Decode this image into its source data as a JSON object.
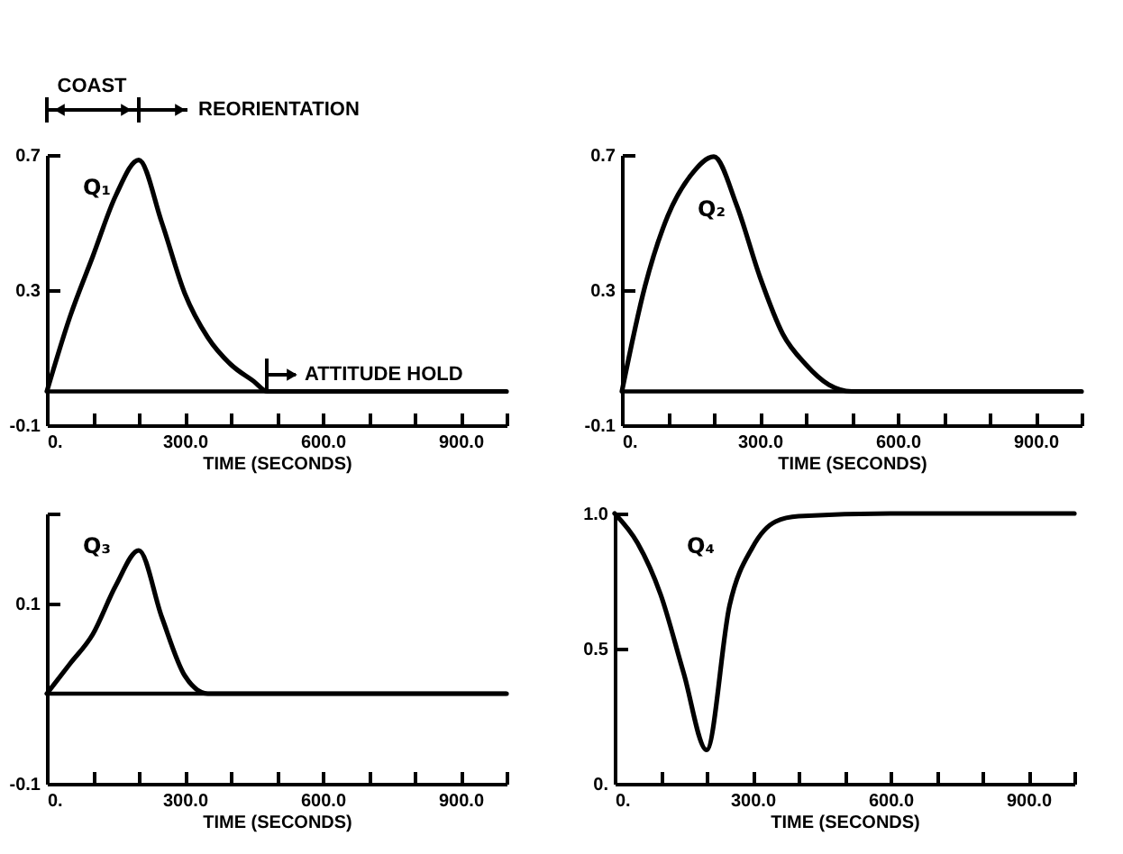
{
  "chart_data": [
    {
      "type": "line",
      "xlabel": "TIME (SECONDS)",
      "xlim": [
        0,
        1000
      ],
      "ylim": [
        -0.1,
        0.7
      ],
      "xticks": [
        {
          "value": 0,
          "label": "0."
        },
        {
          "value": 100,
          "label": null
        },
        {
          "value": 200,
          "label": null
        },
        {
          "value": 300,
          "label": "300.0"
        },
        {
          "value": 400,
          "label": null
        },
        {
          "value": 500,
          "label": null
        },
        {
          "value": 600,
          "label": "600.0"
        },
        {
          "value": 700,
          "label": null
        },
        {
          "value": 800,
          "label": null
        },
        {
          "value": 900,
          "label": "900.0"
        },
        {
          "value": 1000,
          "label": null
        }
      ],
      "yticks": [
        -0.1,
        0.3,
        0.7
      ],
      "x": [
        0,
        50,
        100,
        150,
        200,
        250,
        300,
        350,
        400,
        450,
        480,
        600,
        800,
        1000
      ],
      "series": [
        {
          "name": "Q₁",
          "color": "#000000",
          "values": [
            0,
            0.22,
            0.4,
            0.58,
            0.685,
            0.5,
            0.29,
            0.16,
            0.08,
            0.03,
            0,
            0,
            0,
            0
          ]
        }
      ],
      "ref_lines": [
        {
          "axis": "y",
          "value": 0,
          "color": "#000000"
        }
      ],
      "annotations": [
        "COAST",
        "REORIENTATION",
        "ATTITUDE HOLD"
      ]
    },
    {
      "type": "line",
      "xlabel": "TIME (SECONDS)",
      "xlim": [
        0,
        1000
      ],
      "ylim": [
        -0.1,
        0.7
      ],
      "xticks": [
        {
          "value": 0,
          "label": "0."
        },
        {
          "value": 100,
          "label": null
        },
        {
          "value": 200,
          "label": null
        },
        {
          "value": 300,
          "label": "300.0"
        },
        {
          "value": 400,
          "label": null
        },
        {
          "value": 500,
          "label": null
        },
        {
          "value": 600,
          "label": "600.0"
        },
        {
          "value": 700,
          "label": null
        },
        {
          "value": 800,
          "label": null
        },
        {
          "value": 900,
          "label": "900.0"
        },
        {
          "value": 1000,
          "label": null
        }
      ],
      "yticks": [
        -0.1,
        0.3,
        0.7
      ],
      "x": [
        0,
        50,
        100,
        150,
        200,
        250,
        300,
        350,
        400,
        450,
        500,
        600,
        800,
        1000
      ],
      "series": [
        {
          "name": "Q₂",
          "color": "#000000",
          "values": [
            0,
            0.31,
            0.52,
            0.64,
            0.695,
            0.55,
            0.34,
            0.17,
            0.08,
            0.02,
            0,
            0,
            0,
            0
          ]
        }
      ],
      "ref_lines": [
        {
          "axis": "y",
          "value": 0,
          "color": "#000000"
        }
      ]
    },
    {
      "type": "line",
      "xlabel": "TIME (SECONDS)",
      "xlim": [
        0,
        1000
      ],
      "ylim": [
        -0.1,
        0.2
      ],
      "xticks": [
        {
          "value": 0,
          "label": "0."
        },
        {
          "value": 100,
          "label": null
        },
        {
          "value": 200,
          "label": null
        },
        {
          "value": 300,
          "label": "300.0"
        },
        {
          "value": 400,
          "label": null
        },
        {
          "value": 500,
          "label": null
        },
        {
          "value": 600,
          "label": "600.0"
        },
        {
          "value": 700,
          "label": null
        },
        {
          "value": 800,
          "label": null
        },
        {
          "value": 900,
          "label": "900.0"
        },
        {
          "value": 1000,
          "label": null
        }
      ],
      "yticks": [
        -0.1,
        0.1,
        {
          "value": 0.2,
          "label": null
        }
      ],
      "x": [
        0,
        50,
        100,
        150,
        200,
        250,
        300,
        350,
        400,
        600,
        800,
        1000
      ],
      "series": [
        {
          "name": "Q₃",
          "color": "#000000",
          "values": [
            0,
            0.033,
            0.066,
            0.12,
            0.159,
            0.085,
            0.02,
            0,
            0,
            0,
            0,
            0
          ]
        }
      ],
      "ref_lines": [
        {
          "axis": "y",
          "value": 0,
          "color": "#000000"
        }
      ]
    },
    {
      "type": "line",
      "xlabel": "TIME (SECONDS)",
      "xlim": [
        0,
        1000
      ],
      "ylim": [
        0,
        1.0
      ],
      "xticks": [
        {
          "value": 0,
          "label": "0."
        },
        {
          "value": 100,
          "label": null
        },
        {
          "value": 200,
          "label": null
        },
        {
          "value": 300,
          "label": "300.0"
        },
        {
          "value": 400,
          "label": null
        },
        {
          "value": 500,
          "label": null
        },
        {
          "value": 600,
          "label": "600.0"
        },
        {
          "value": 700,
          "label": null
        },
        {
          "value": 800,
          "label": null
        },
        {
          "value": 900,
          "label": "900.0"
        },
        {
          "value": 1000,
          "label": null
        }
      ],
      "yticks": [
        {
          "value": 0,
          "label": "0."
        },
        0.5,
        {
          "value": 1.0,
          "label": "1.0"
        }
      ],
      "x": [
        0,
        50,
        100,
        150,
        200,
        250,
        300,
        350,
        400,
        600,
        800,
        1000
      ],
      "series": [
        {
          "name": "Q₄",
          "color": "#000000",
          "values": [
            1.0,
            0.89,
            0.7,
            0.41,
            0.125,
            0.66,
            0.875,
            0.97,
            0.99,
            1.0,
            1.0,
            1.0
          ]
        }
      ]
    }
  ]
}
